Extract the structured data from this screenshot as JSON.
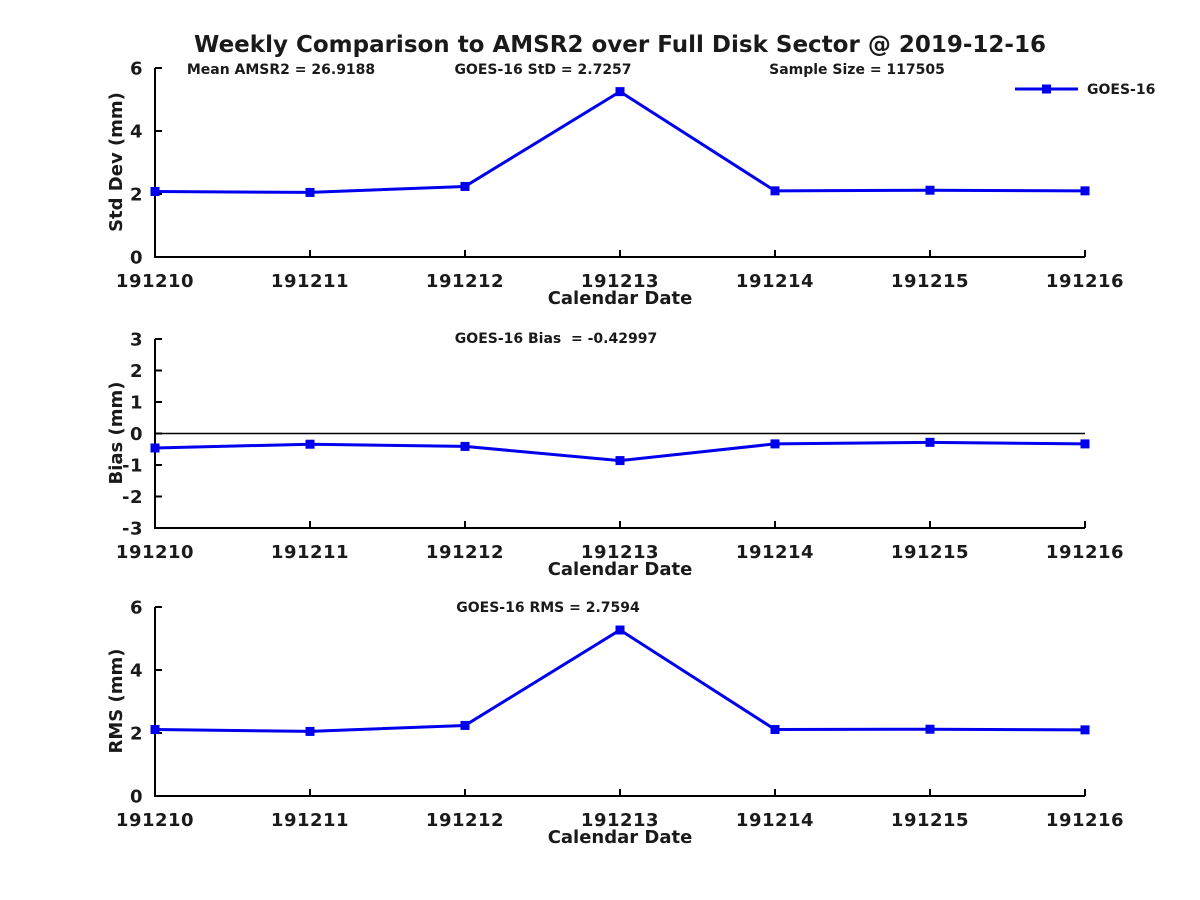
{
  "title": "Weekly Comparison to AMSR2 over Full Disk Sector @ 2019-12-16",
  "colors": {
    "series": "#0000ee",
    "axis": "#000000",
    "text": "#1a1a1a",
    "background": "#ffffff"
  },
  "chart_data": [
    {
      "type": "line",
      "name": "std-dev-subplot",
      "xlabel": "Calendar Date",
      "ylabel": "Std Dev (mm)",
      "categories": [
        "191210",
        "191211",
        "191212",
        "191213",
        "191214",
        "191215",
        "191216"
      ],
      "series": [
        {
          "name": "GOES-16",
          "marker": "square",
          "values": [
            2.08,
            2.05,
            2.24,
            5.25,
            2.1,
            2.12,
            2.1
          ]
        }
      ],
      "ylim": [
        0,
        6
      ],
      "yticks": [
        0,
        2,
        4,
        6
      ],
      "grid": false,
      "annotations": [
        "Mean AMSR2 = 26.9188",
        "GOES-16 StD = 2.7257",
        "Sample Size = 117505"
      ],
      "legend": [
        "GOES-16"
      ],
      "legend_position": "upper right"
    },
    {
      "type": "line",
      "name": "bias-subplot",
      "xlabel": "Calendar Date",
      "ylabel": "Bias (mm)",
      "categories": [
        "191210",
        "191211",
        "191212",
        "191213",
        "191214",
        "191215",
        "191216"
      ],
      "series": [
        {
          "name": "GOES-16",
          "marker": "square",
          "values": [
            -0.46,
            -0.34,
            -0.41,
            -0.86,
            -0.33,
            -0.28,
            -0.33
          ]
        }
      ],
      "ylim": [
        -3,
        3
      ],
      "yticks": [
        -3,
        -2,
        -1,
        0,
        1,
        2,
        3
      ],
      "zero_line": true,
      "grid": false,
      "annotations": [
        "GOES-16 Bias  = -0.42997"
      ]
    },
    {
      "type": "line",
      "name": "rms-subplot",
      "xlabel": "Calendar Date",
      "ylabel": "RMS (mm)",
      "categories": [
        "191210",
        "191211",
        "191212",
        "191213",
        "191214",
        "191215",
        "191216"
      ],
      "series": [
        {
          "name": "GOES-16",
          "marker": "square",
          "values": [
            2.11,
            2.05,
            2.24,
            5.27,
            2.11,
            2.12,
            2.1
          ]
        }
      ],
      "ylim": [
        0,
        6
      ],
      "yticks": [
        0,
        2,
        4,
        6
      ],
      "grid": false,
      "annotations": [
        "GOES-16 RMS = 2.7594"
      ]
    }
  ]
}
